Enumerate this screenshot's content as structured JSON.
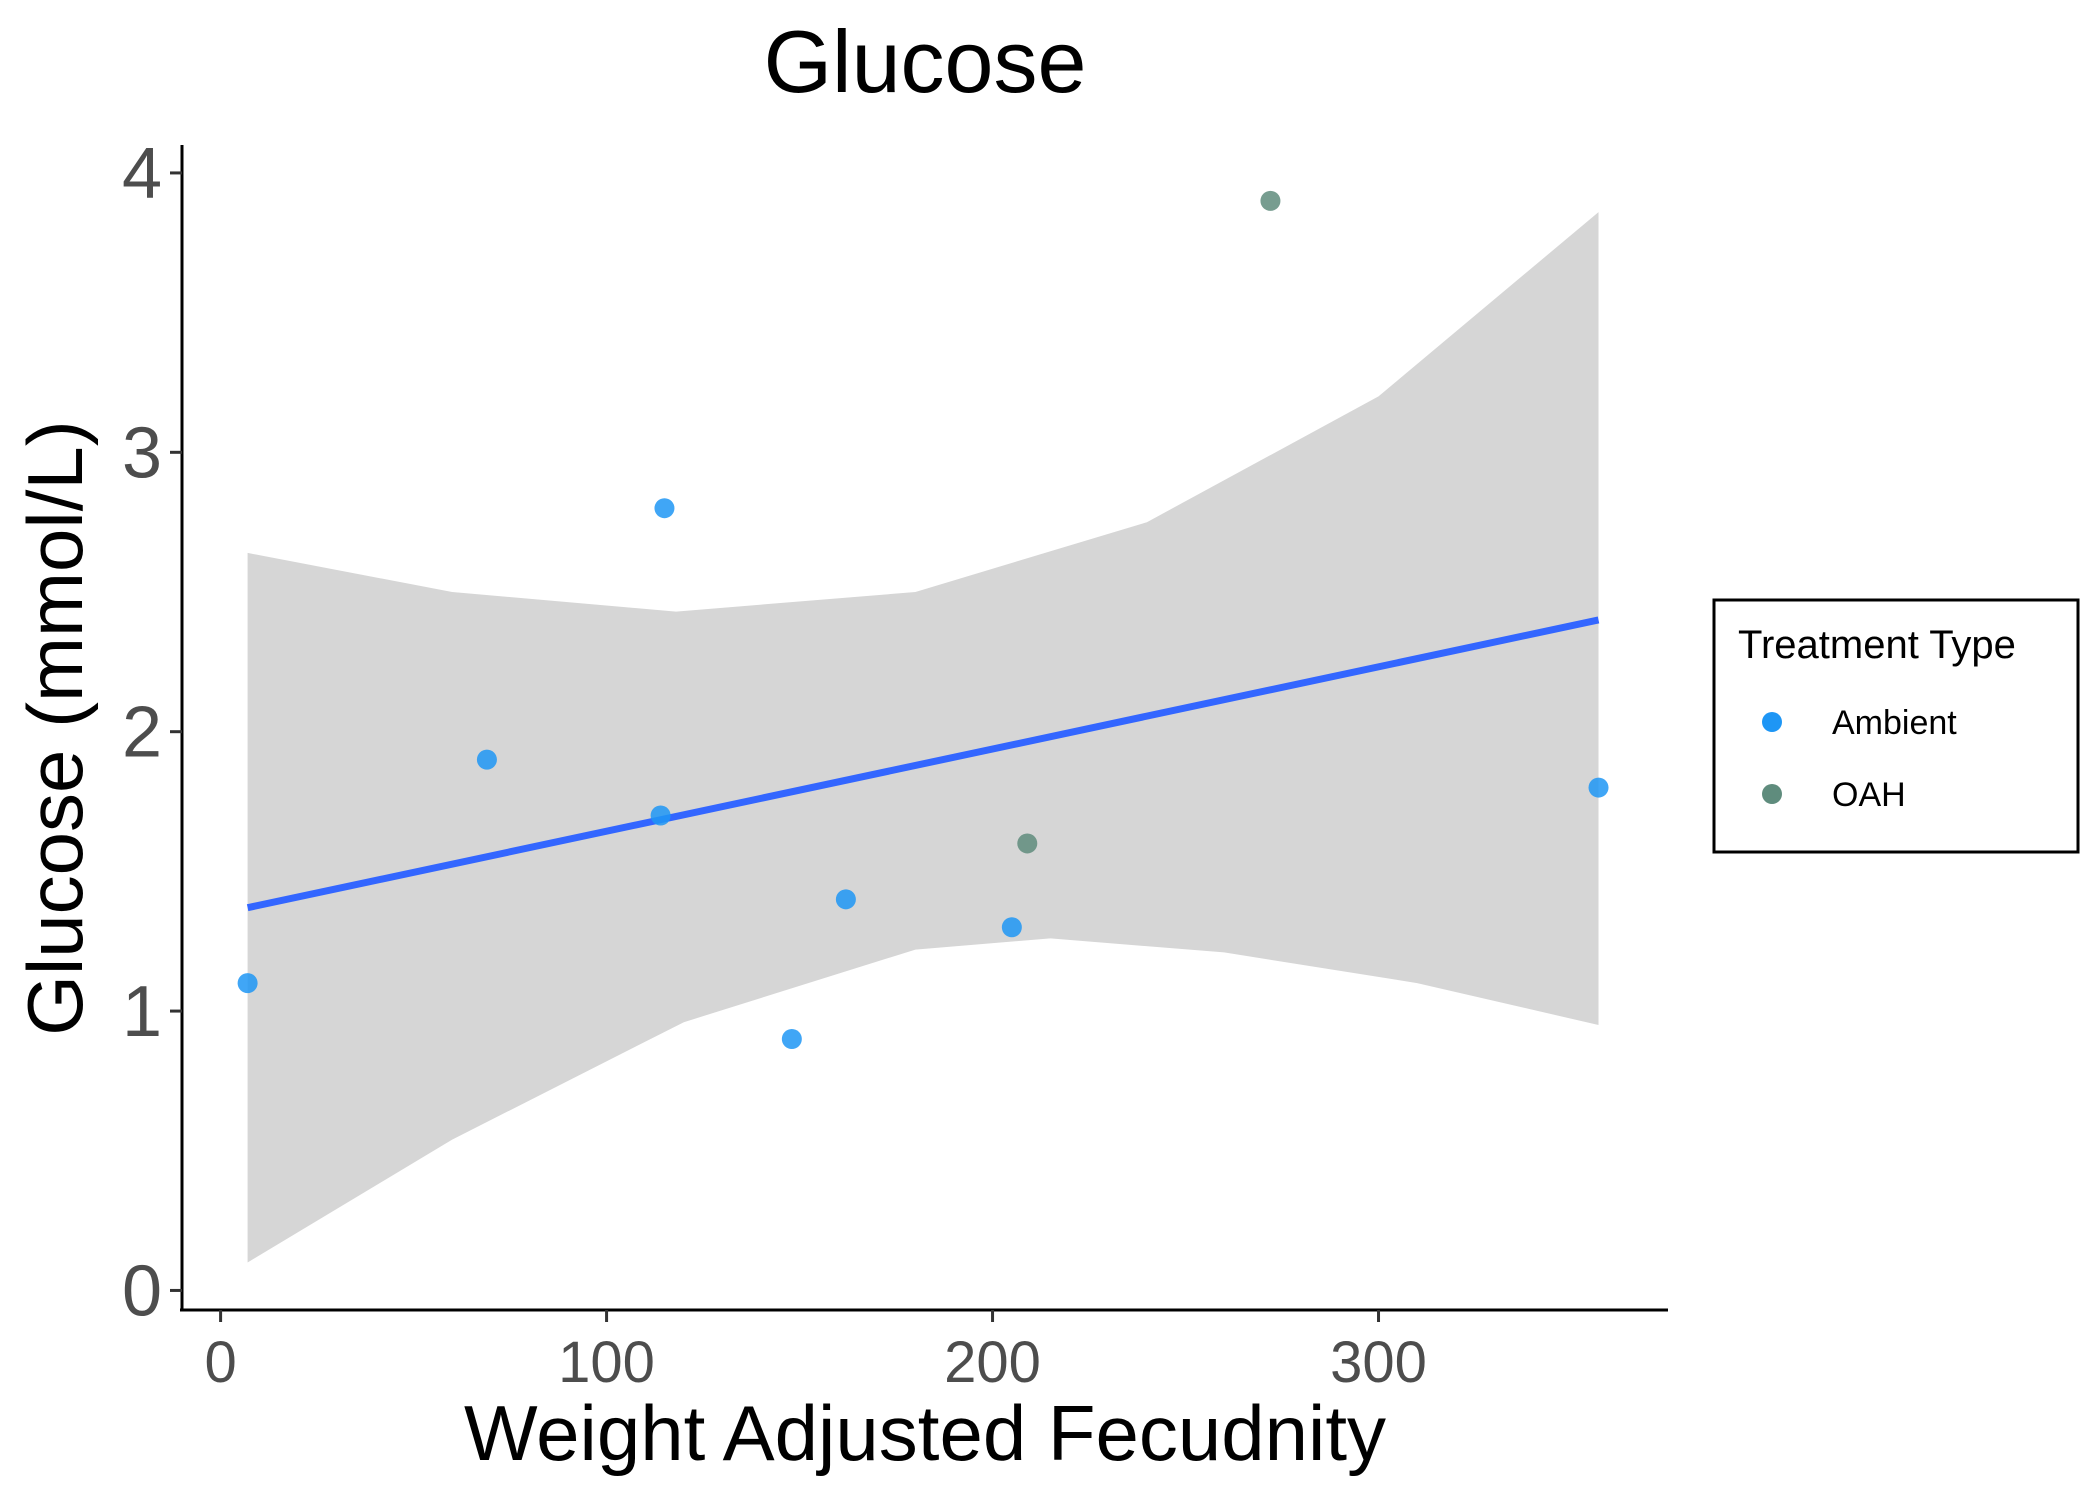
{
  "chart_data": {
    "type": "scatter",
    "title": "Glucose",
    "xlabel": "Weight Adjusted Fecudnity",
    "ylabel": "Glucose (mmol/L)",
    "xlim": [
      -10,
      375
    ],
    "ylim": [
      -0.07,
      4.1
    ],
    "xticks": [
      0,
      100,
      200,
      300
    ],
    "xtick_labels": [
      "0",
      "100",
      "200",
      "300"
    ],
    "yticks": [
      0,
      1,
      2,
      3,
      4
    ],
    "ytick_labels": [
      "0",
      "1",
      "2",
      "3",
      "4"
    ],
    "grid": false,
    "legend": {
      "title": "Treatment Type",
      "position": "right",
      "entries": [
        {
          "label": "Ambient",
          "color": "#1e96f5"
        },
        {
          "label": "OAH",
          "color": "#5f8c7d"
        }
      ]
    },
    "series": [
      {
        "name": "Ambient",
        "color": "#1e96f5",
        "points": [
          {
            "x": 7,
            "y": 1.1
          },
          {
            "x": 69,
            "y": 1.9
          },
          {
            "x": 114,
            "y": 1.7
          },
          {
            "x": 115,
            "y": 2.8
          },
          {
            "x": 148,
            "y": 0.9
          },
          {
            "x": 162,
            "y": 1.4
          },
          {
            "x": 205,
            "y": 1.3
          },
          {
            "x": 357,
            "y": 1.8
          }
        ]
      },
      {
        "name": "OAH",
        "color": "#5f8c7d",
        "points": [
          {
            "x": 209,
            "y": 1.6
          },
          {
            "x": 272,
            "y": 3.9
          }
        ]
      }
    ],
    "trend_line": {
      "color": "#3366ff",
      "points": [
        {
          "x": 7,
          "y": 1.37
        },
        {
          "x": 357,
          "y": 2.4
        }
      ]
    },
    "confidence_band": {
      "color": "#d6d6d6",
      "upper": [
        {
          "x": 7,
          "y": 2.64
        },
        {
          "x": 60,
          "y": 2.5
        },
        {
          "x": 118,
          "y": 2.43
        },
        {
          "x": 180,
          "y": 2.5
        },
        {
          "x": 240,
          "y": 2.75
        },
        {
          "x": 300,
          "y": 3.2
        },
        {
          "x": 357,
          "y": 3.86
        }
      ],
      "lower": [
        {
          "x": 7,
          "y": 0.1
        },
        {
          "x": 60,
          "y": 0.54
        },
        {
          "x": 120,
          "y": 0.96
        },
        {
          "x": 180,
          "y": 1.22
        },
        {
          "x": 215,
          "y": 1.26
        },
        {
          "x": 260,
          "y": 1.21
        },
        {
          "x": 310,
          "y": 1.1
        },
        {
          "x": 357,
          "y": 0.95
        }
      ]
    }
  }
}
